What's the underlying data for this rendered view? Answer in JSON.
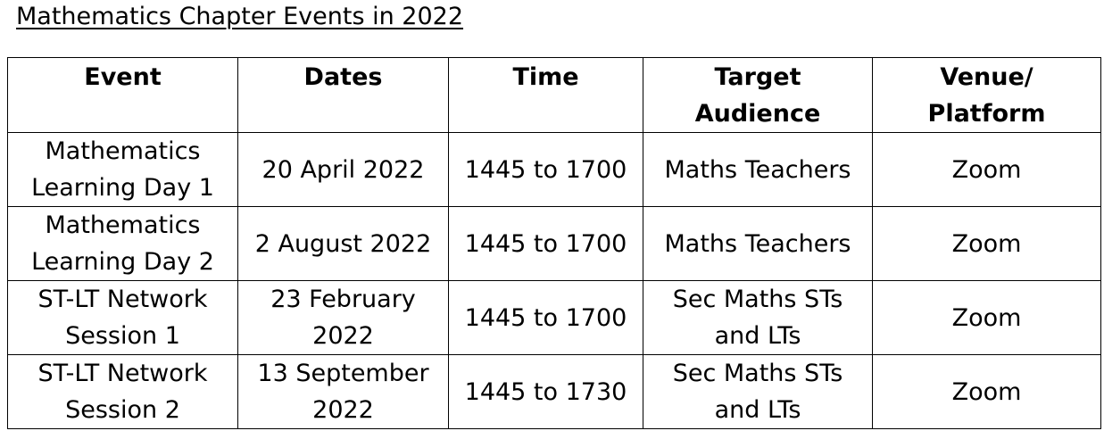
{
  "document": {
    "title": "Mathematics Chapter Events in 2022"
  },
  "table": {
    "headers": {
      "event": "Event",
      "dates": "Dates",
      "time": "Time",
      "audience_line1": "Target",
      "audience_line2": "Audience",
      "venue_line1": "Venue/",
      "venue_line2": "Platform"
    },
    "rows": [
      {
        "event_line1": "Mathematics",
        "event_line2": "Learning Day 1",
        "dates_line1": "20 April 2022",
        "dates_line2": "",
        "time": "1445 to 1700",
        "audience_line1": "Maths Teachers",
        "audience_line2": "",
        "venue": "Zoom"
      },
      {
        "event_line1": "Mathematics",
        "event_line2": "Learning Day 2",
        "dates_line1": "2 August 2022",
        "dates_line2": "",
        "time": "1445 to 1700",
        "audience_line1": "Maths Teachers",
        "audience_line2": "",
        "venue": "Zoom"
      },
      {
        "event_line1": "ST-LT Network",
        "event_line2": "Session 1",
        "dates_line1": "23 February",
        "dates_line2": "2022",
        "time": "1445 to 1700",
        "audience_line1": "Sec Maths STs",
        "audience_line2": "and LTs",
        "venue": "Zoom"
      },
      {
        "event_line1": "ST-LT Network",
        "event_line2": "Session 2",
        "dates_line1": "13 September",
        "dates_line2": "2022",
        "time": "1445 to 1730",
        "audience_line1": "Sec Maths STs",
        "audience_line2": "and LTs",
        "venue": "Zoom"
      }
    ]
  }
}
